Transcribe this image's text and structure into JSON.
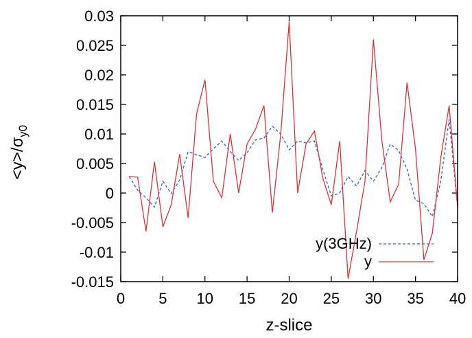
{
  "chart_data": {
    "type": "line",
    "xlabel": "z-slice",
    "ylabel_main": "<y>/σ",
    "ylabel_sub": "y0",
    "xlim": [
      0,
      40
    ],
    "ylim": [
      -0.015,
      0.03
    ],
    "xticks": [
      0,
      5,
      10,
      15,
      20,
      25,
      30,
      35,
      40
    ],
    "xtick_labels": [
      "0",
      "5",
      "10",
      "15",
      "20",
      "25",
      "30",
      "35",
      "40"
    ],
    "yticks": [
      -0.015,
      -0.01,
      -0.005,
      0,
      0.005,
      0.01,
      0.015,
      0.02,
      0.025,
      0.03
    ],
    "ytick_labels": [
      "-0.015",
      "-0.01",
      "-0.005",
      "0",
      "0.005",
      "0.01",
      "0.015",
      "0.02",
      "0.025",
      "0.03"
    ],
    "grid": false,
    "legend_position": "bottom-right",
    "x": [
      1,
      2,
      3,
      4,
      5,
      6,
      7,
      8,
      9,
      10,
      11,
      12,
      13,
      14,
      15,
      16,
      17,
      18,
      19,
      20,
      21,
      22,
      23,
      24,
      25,
      26,
      27,
      28,
      29,
      30,
      31,
      32,
      33,
      34,
      35,
      36,
      37,
      38,
      39,
      40
    ],
    "series": [
      {
        "name": "y(3GHz)",
        "color": "#2f5fd6",
        "style": "dashed",
        "values": [
          0.0028,
          0.0005,
          -0.0008,
          -0.0024,
          0.002,
          -0.0001,
          0.0022,
          0.007,
          0.0065,
          0.006,
          0.0075,
          0.0088,
          0.007,
          0.0055,
          0.0068,
          0.009,
          0.0093,
          0.0113,
          0.01,
          0.0073,
          0.0088,
          0.0085,
          0.0088,
          0.004,
          -0.0005,
          0.0,
          0.0028,
          0.0012,
          0.0038,
          0.002,
          0.0043,
          0.0083,
          0.0072,
          0.004,
          -0.0012,
          -0.0018,
          -0.004,
          0.002,
          0.0125,
          -0.0025
        ]
      },
      {
        "name": "y",
        "color": "#e03030",
        "style": "solid",
        "values": [
          0.0028,
          0.0027,
          -0.0065,
          0.0053,
          -0.0057,
          -0.002,
          0.0066,
          -0.0042,
          0.0134,
          0.0192,
          0.002,
          -0.0008,
          0.01,
          0.0,
          0.0083,
          0.0108,
          0.0148,
          -0.0033,
          0.01,
          0.029,
          0.0,
          0.0083,
          0.0105,
          0.0025,
          -0.002,
          0.0088,
          -0.0145,
          -0.0065,
          0.002,
          0.026,
          0.009,
          -0.0015,
          0.0015,
          0.0187,
          0.0075,
          -0.0113,
          -0.0068,
          0.006,
          0.0148,
          -0.0023
        ]
      }
    ]
  }
}
